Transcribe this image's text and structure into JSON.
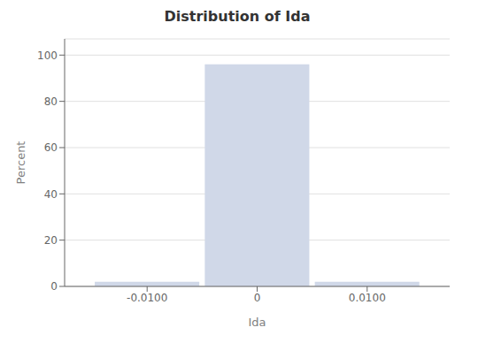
{
  "chart_data": {
    "type": "bar",
    "title": "Distribution of Ida",
    "xlabel": "Ida",
    "ylabel": "Percent",
    "x": [
      -0.01,
      0.0,
      0.01
    ],
    "values": [
      2.0,
      96.0,
      2.0
    ],
    "color": "#d0d8e8",
    "xlim": [
      -0.0175,
      0.0175
    ],
    "xticks": [
      {
        "value": -0.01,
        "label": "-0.0100"
      },
      0,
      {
        "value": 0.01,
        "label": "0.0100"
      }
    ],
    "ylim": [
      0,
      107
    ],
    "yticks": [
      0,
      20,
      40,
      60,
      80,
      100
    ],
    "grid": true
  }
}
